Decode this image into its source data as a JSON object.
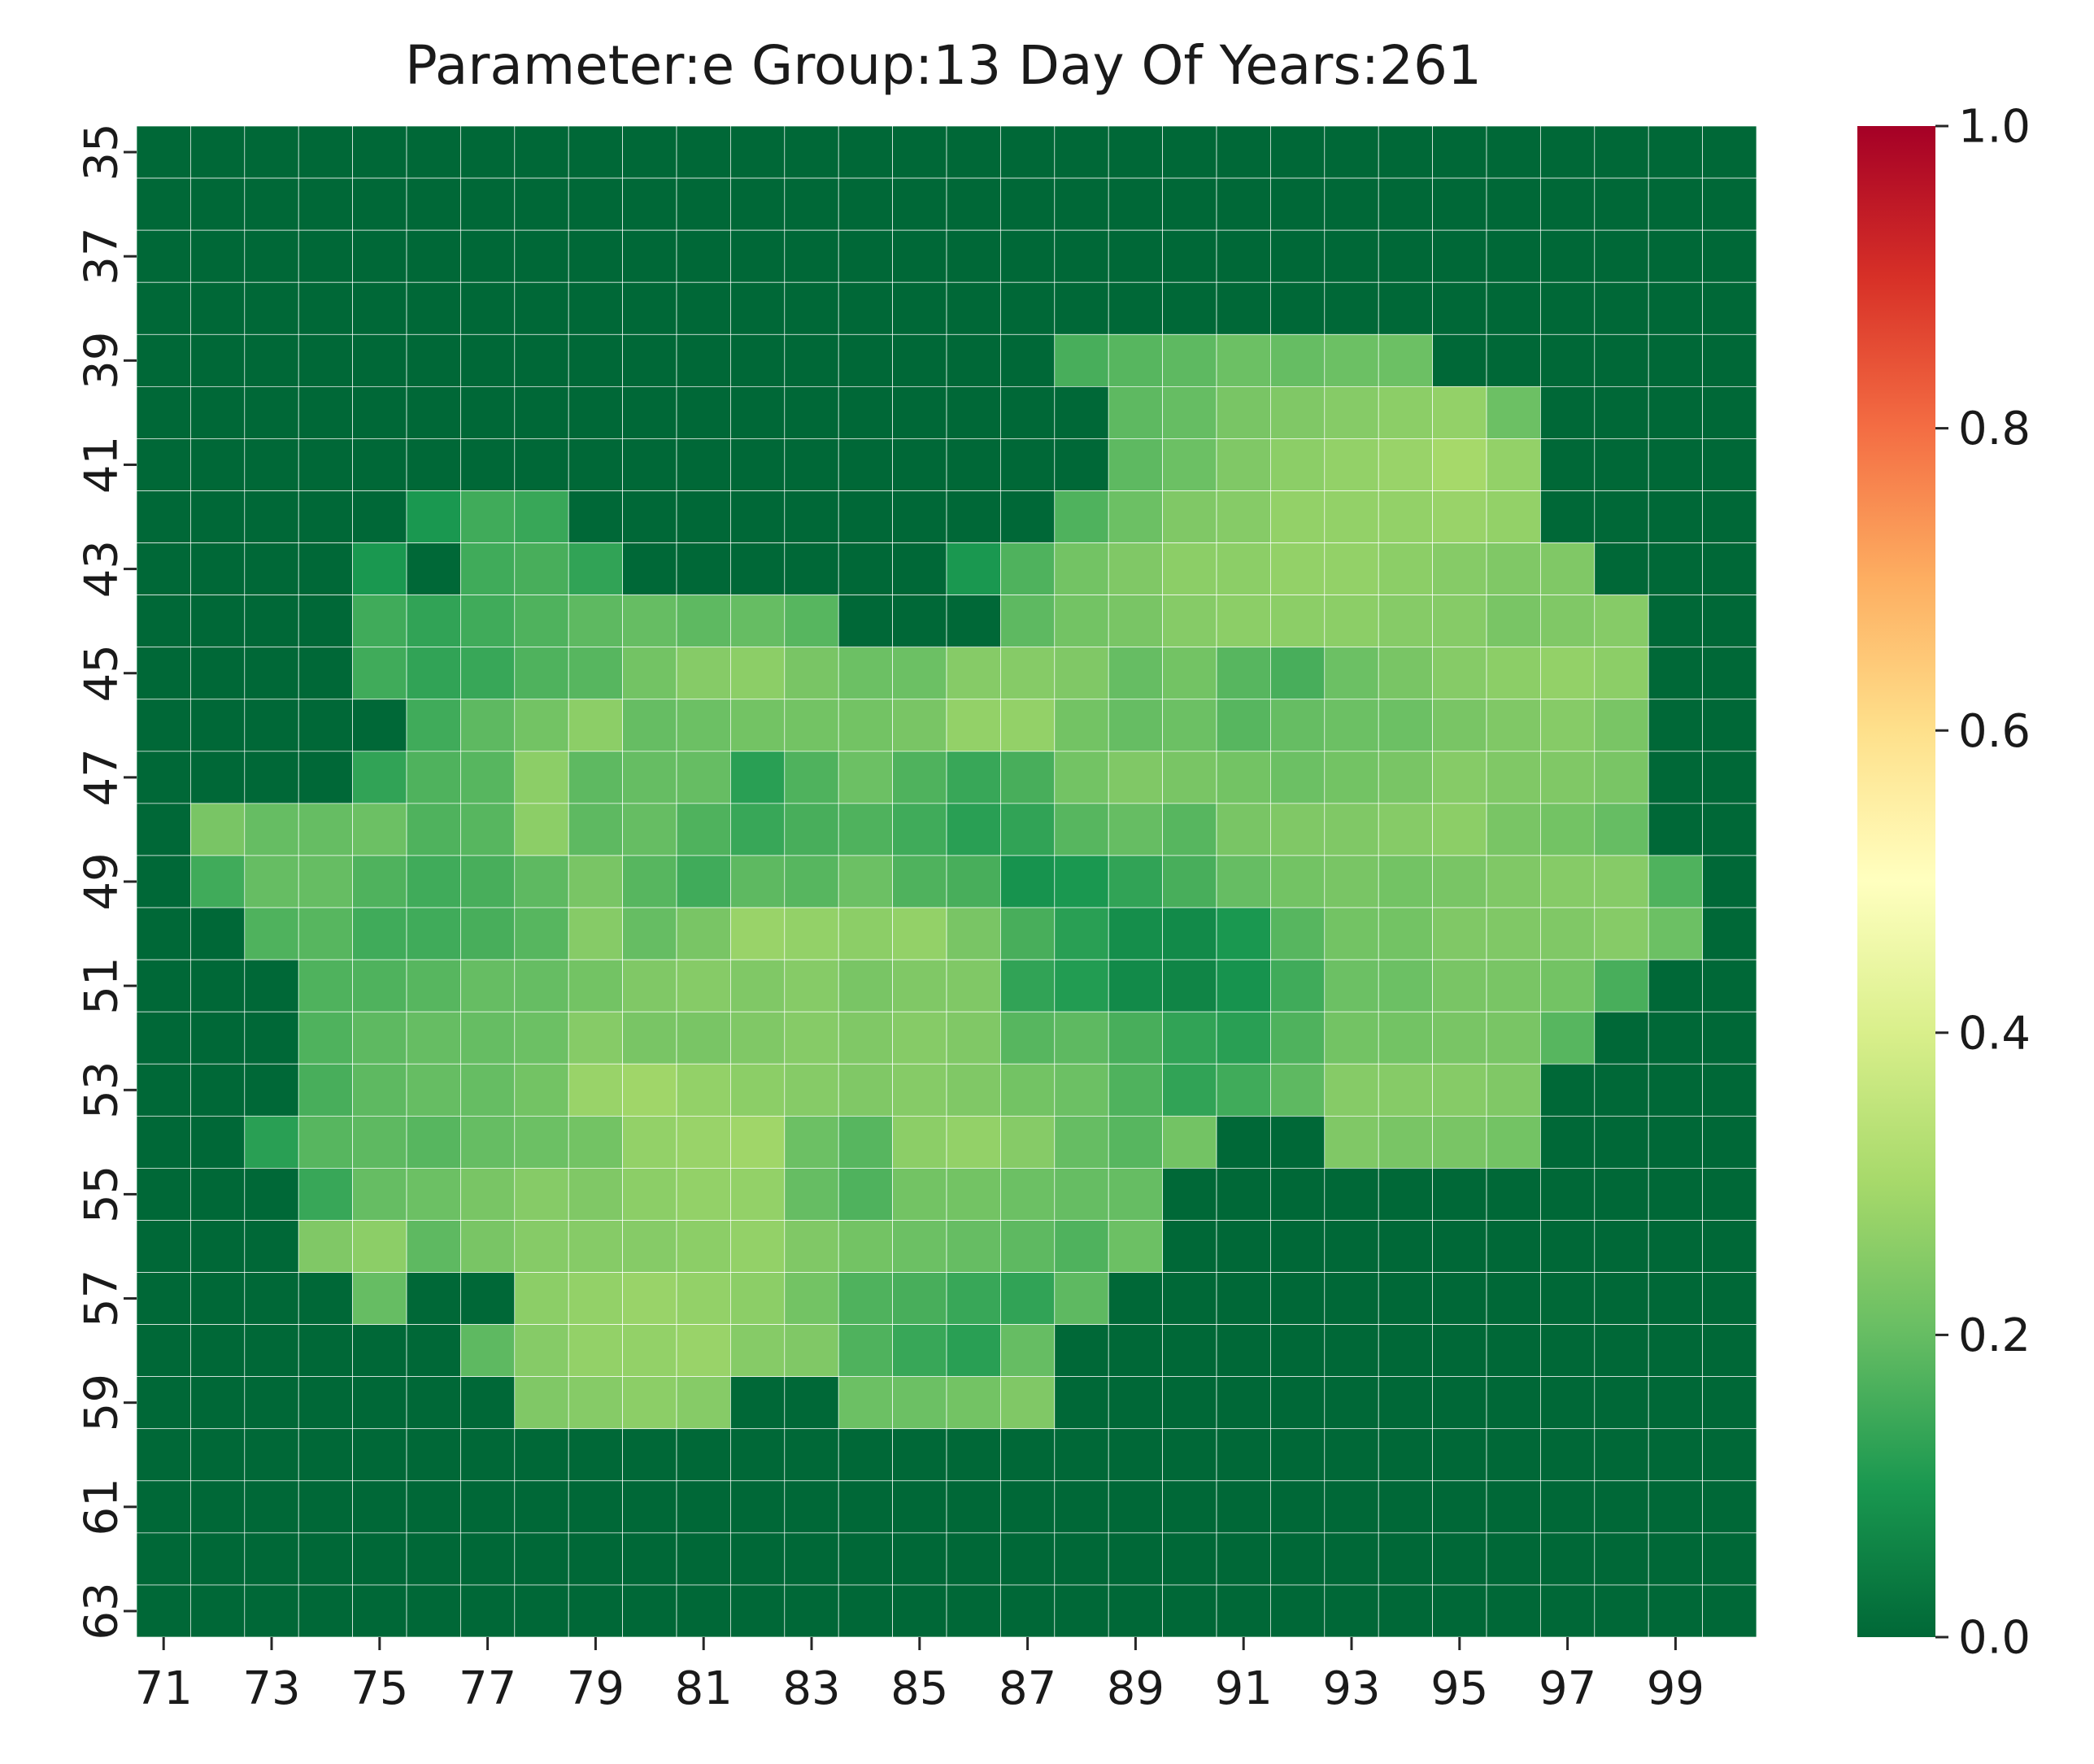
{
  "chart_data": {
    "type": "heatmap",
    "title": "Parameter:e Group:13 Day Of Years:261",
    "x": [
      71,
      72,
      73,
      74,
      75,
      76,
      77,
      78,
      79,
      80,
      81,
      82,
      83,
      84,
      85,
      86,
      87,
      88,
      89,
      90,
      91,
      92,
      93,
      94,
      95,
      96,
      97,
      98,
      99,
      100
    ],
    "y": [
      35,
      36,
      37,
      38,
      39,
      40,
      41,
      42,
      43,
      44,
      45,
      46,
      47,
      48,
      49,
      50,
      51,
      52,
      53,
      54,
      55,
      56,
      57,
      58,
      59,
      60,
      61,
      62,
      63
    ],
    "x_tick_labels": [
      "71",
      "73",
      "75",
      "77",
      "79",
      "81",
      "83",
      "85",
      "87",
      "89",
      "91",
      "93",
      "95",
      "97",
      "99"
    ],
    "y_tick_labels": [
      "35",
      "37",
      "39",
      "41",
      "43",
      "45",
      "47",
      "49",
      "51",
      "53",
      "55",
      "57",
      "59",
      "61",
      "63"
    ],
    "colormap": "RdYlGn_r",
    "color_range": [
      0.0,
      1.0
    ],
    "colorbar_ticks": [
      "0.0",
      "0.2",
      "0.4",
      "0.6",
      "0.8",
      "1.0"
    ],
    "grid_lines": true,
    "values": [
      [
        0,
        0,
        0,
        0,
        0,
        0,
        0,
        0,
        0,
        0,
        0,
        0,
        0,
        0,
        0,
        0,
        0,
        0,
        0,
        0,
        0,
        0,
        0,
        0,
        0,
        0,
        0,
        0,
        0,
        0
      ],
      [
        0,
        0,
        0,
        0,
        0,
        0,
        0,
        0,
        0,
        0,
        0,
        0,
        0,
        0,
        0,
        0,
        0,
        0,
        0,
        0,
        0,
        0,
        0,
        0,
        0,
        0,
        0,
        0,
        0,
        0
      ],
      [
        0,
        0,
        0,
        0,
        0,
        0,
        0,
        0,
        0,
        0,
        0,
        0,
        0,
        0,
        0,
        0,
        0,
        0,
        0,
        0,
        0,
        0,
        0,
        0,
        0,
        0,
        0,
        0,
        0,
        0
      ],
      [
        0,
        0,
        0,
        0,
        0,
        0,
        0,
        0,
        0,
        0,
        0,
        0,
        0,
        0,
        0,
        0,
        0,
        0,
        0,
        0,
        0,
        0,
        0,
        0,
        0,
        0,
        0,
        0,
        0,
        0
      ],
      [
        0,
        0,
        0,
        0,
        0,
        0,
        0,
        0,
        0,
        0,
        0,
        0,
        0,
        0,
        0,
        0,
        0,
        0.16,
        0.18,
        0.19,
        0.21,
        0.2,
        0.21,
        0.21,
        0,
        0,
        0,
        0,
        0,
        0
      ],
      [
        0,
        0,
        0,
        0,
        0,
        0,
        0,
        0,
        0,
        0,
        0,
        0,
        0,
        0,
        0,
        0,
        0,
        0,
        0.19,
        0.2,
        0.23,
        0.24,
        0.25,
        0.26,
        0.27,
        0.21,
        0,
        0,
        0,
        0
      ],
      [
        0,
        0,
        0,
        0,
        0,
        0,
        0,
        0,
        0,
        0,
        0,
        0,
        0,
        0,
        0,
        0,
        0,
        0,
        0.19,
        0.21,
        0.24,
        0.26,
        0.27,
        0.28,
        0.3,
        0.27,
        0,
        0,
        0,
        0
      ],
      [
        0,
        0,
        0,
        0,
        0,
        0.1,
        0.15,
        0.14,
        0,
        0,
        0,
        0,
        0,
        0,
        0,
        0,
        0,
        0.17,
        0.21,
        0.24,
        0.25,
        0.27,
        0.27,
        0.27,
        0.28,
        0.27,
        0,
        0,
        0,
        0
      ],
      [
        0,
        0,
        0,
        0,
        0.1,
        0,
        0.15,
        0.16,
        0.13,
        0,
        0,
        0,
        0,
        0,
        0,
        0.1,
        0.17,
        0.22,
        0.24,
        0.26,
        0.26,
        0.27,
        0.27,
        0.26,
        0.25,
        0.24,
        0.24,
        0,
        0,
        0
      ],
      [
        0,
        0,
        0,
        0,
        0.15,
        0.13,
        0.15,
        0.17,
        0.19,
        0.2,
        0.19,
        0.2,
        0.18,
        0,
        0,
        0,
        0.19,
        0.22,
        0.23,
        0.25,
        0.26,
        0.26,
        0.26,
        0.25,
        0.25,
        0.23,
        0.24,
        0.25,
        0,
        0
      ],
      [
        0,
        0,
        0,
        0,
        0.15,
        0.13,
        0.14,
        0.17,
        0.18,
        0.22,
        0.25,
        0.26,
        0.23,
        0.21,
        0.21,
        0.25,
        0.25,
        0.24,
        0.2,
        0.22,
        0.18,
        0.16,
        0.21,
        0.23,
        0.25,
        0.26,
        0.27,
        0.26,
        0,
        0
      ],
      [
        0,
        0,
        0,
        0,
        0,
        0.15,
        0.19,
        0.22,
        0.26,
        0.2,
        0.21,
        0.22,
        0.22,
        0.22,
        0.23,
        0.27,
        0.27,
        0.22,
        0.2,
        0.21,
        0.18,
        0.2,
        0.21,
        0.21,
        0.23,
        0.24,
        0.25,
        0.23,
        0,
        0
      ],
      [
        0,
        0,
        0,
        0,
        0.13,
        0.17,
        0.18,
        0.26,
        0.19,
        0.2,
        0.2,
        0.12,
        0.17,
        0.21,
        0.17,
        0.14,
        0.16,
        0.22,
        0.24,
        0.23,
        0.22,
        0.21,
        0.22,
        0.23,
        0.25,
        0.24,
        0.24,
        0.23,
        0,
        0
      ],
      [
        0,
        0.23,
        0.2,
        0.2,
        0.21,
        0.17,
        0.18,
        0.26,
        0.19,
        0.2,
        0.17,
        0.14,
        0.16,
        0.17,
        0.15,
        0.12,
        0.13,
        0.18,
        0.2,
        0.18,
        0.23,
        0.24,
        0.24,
        0.25,
        0.26,
        0.23,
        0.22,
        0.2,
        0,
        0
      ],
      [
        0,
        0.15,
        0.2,
        0.2,
        0.17,
        0.15,
        0.16,
        0.19,
        0.23,
        0.18,
        0.15,
        0.19,
        0.18,
        0.21,
        0.17,
        0.16,
        0.09,
        0.1,
        0.13,
        0.16,
        0.2,
        0.22,
        0.23,
        0.22,
        0.23,
        0.24,
        0.25,
        0.25,
        0.17,
        0
      ],
      [
        0,
        0,
        0.17,
        0.18,
        0.15,
        0.15,
        0.16,
        0.18,
        0.25,
        0.2,
        0.23,
        0.28,
        0.27,
        0.26,
        0.27,
        0.23,
        0.16,
        0.12,
        0.08,
        0.07,
        0.1,
        0.18,
        0.22,
        0.22,
        0.24,
        0.24,
        0.24,
        0.25,
        0.21,
        0
      ],
      [
        0,
        0,
        0,
        0.17,
        0.17,
        0.18,
        0.2,
        0.2,
        0.22,
        0.24,
        0.25,
        0.24,
        0.25,
        0.23,
        0.24,
        0.24,
        0.13,
        0.11,
        0.07,
        0.06,
        0.09,
        0.15,
        0.21,
        0.21,
        0.23,
        0.23,
        0.22,
        0.16,
        0,
        0
      ],
      [
        0,
        0,
        0,
        0.17,
        0.19,
        0.2,
        0.2,
        0.21,
        0.25,
        0.23,
        0.23,
        0.24,
        0.25,
        0.24,
        0.25,
        0.24,
        0.18,
        0.19,
        0.16,
        0.13,
        0.12,
        0.17,
        0.22,
        0.22,
        0.23,
        0.23,
        0.18,
        0,
        0,
        0
      ],
      [
        0,
        0,
        0,
        0.16,
        0.19,
        0.2,
        0.2,
        0.22,
        0.28,
        0.29,
        0.27,
        0.26,
        0.25,
        0.24,
        0.25,
        0.24,
        0.22,
        0.21,
        0.17,
        0.13,
        0.15,
        0.19,
        0.25,
        0.25,
        0.25,
        0.24,
        0,
        0,
        0,
        0
      ],
      [
        0,
        0,
        0.12,
        0.18,
        0.19,
        0.18,
        0.2,
        0.21,
        0.22,
        0.27,
        0.28,
        0.29,
        0.21,
        0.18,
        0.26,
        0.27,
        0.25,
        0.2,
        0.18,
        0.22,
        0,
        0,
        0.24,
        0.23,
        0.23,
        0.22,
        0,
        0,
        0,
        0
      ],
      [
        0,
        0,
        0,
        0.14,
        0.2,
        0.21,
        0.23,
        0.25,
        0.24,
        0.26,
        0.27,
        0.27,
        0.2,
        0.17,
        0.22,
        0.22,
        0.21,
        0.2,
        0.2,
        0,
        0,
        0,
        0,
        0,
        0,
        0,
        0,
        0,
        0,
        0
      ],
      [
        0,
        0,
        0,
        0.24,
        0.26,
        0.19,
        0.23,
        0.25,
        0.25,
        0.25,
        0.26,
        0.27,
        0.24,
        0.22,
        0.21,
        0.2,
        0.19,
        0.17,
        0.21,
        0,
        0,
        0,
        0,
        0,
        0,
        0,
        0,
        0,
        0,
        0
      ],
      [
        0,
        0,
        0,
        0,
        0.2,
        0,
        0,
        0.26,
        0.27,
        0.28,
        0.27,
        0.26,
        0.22,
        0.17,
        0.16,
        0.14,
        0.13,
        0.19,
        0,
        0,
        0,
        0,
        0,
        0,
        0,
        0,
        0,
        0,
        0,
        0
      ],
      [
        0,
        0,
        0,
        0,
        0,
        0,
        0.19,
        0.25,
        0.27,
        0.27,
        0.28,
        0.25,
        0.24,
        0.17,
        0.14,
        0.12,
        0.2,
        0,
        0,
        0,
        0,
        0,
        0,
        0,
        0,
        0,
        0,
        0,
        0,
        0
      ],
      [
        0,
        0,
        0,
        0,
        0,
        0,
        0,
        0.24,
        0.25,
        0.26,
        0.25,
        0,
        0,
        0.21,
        0.21,
        0.22,
        0.24,
        0,
        0,
        0,
        0,
        0,
        0,
        0,
        0,
        0,
        0,
        0,
        0,
        0
      ],
      [
        0,
        0,
        0,
        0,
        0,
        0,
        0,
        0,
        0,
        0,
        0,
        0,
        0,
        0,
        0,
        0,
        0,
        0,
        0,
        0,
        0,
        0,
        0,
        0,
        0,
        0,
        0,
        0,
        0,
        0
      ],
      [
        0,
        0,
        0,
        0,
        0,
        0,
        0,
        0,
        0,
        0,
        0,
        0,
        0,
        0,
        0,
        0,
        0,
        0,
        0,
        0,
        0,
        0,
        0,
        0,
        0,
        0,
        0,
        0,
        0,
        0
      ],
      [
        0,
        0,
        0,
        0,
        0,
        0,
        0,
        0,
        0,
        0,
        0,
        0,
        0,
        0,
        0,
        0,
        0,
        0,
        0,
        0,
        0,
        0,
        0,
        0,
        0,
        0,
        0,
        0,
        0,
        0
      ],
      [
        0,
        0,
        0,
        0,
        0,
        0,
        0,
        0,
        0,
        0,
        0,
        0,
        0,
        0,
        0,
        0,
        0,
        0,
        0,
        0,
        0,
        0,
        0,
        0,
        0,
        0,
        0,
        0,
        0,
        0
      ]
    ]
  }
}
